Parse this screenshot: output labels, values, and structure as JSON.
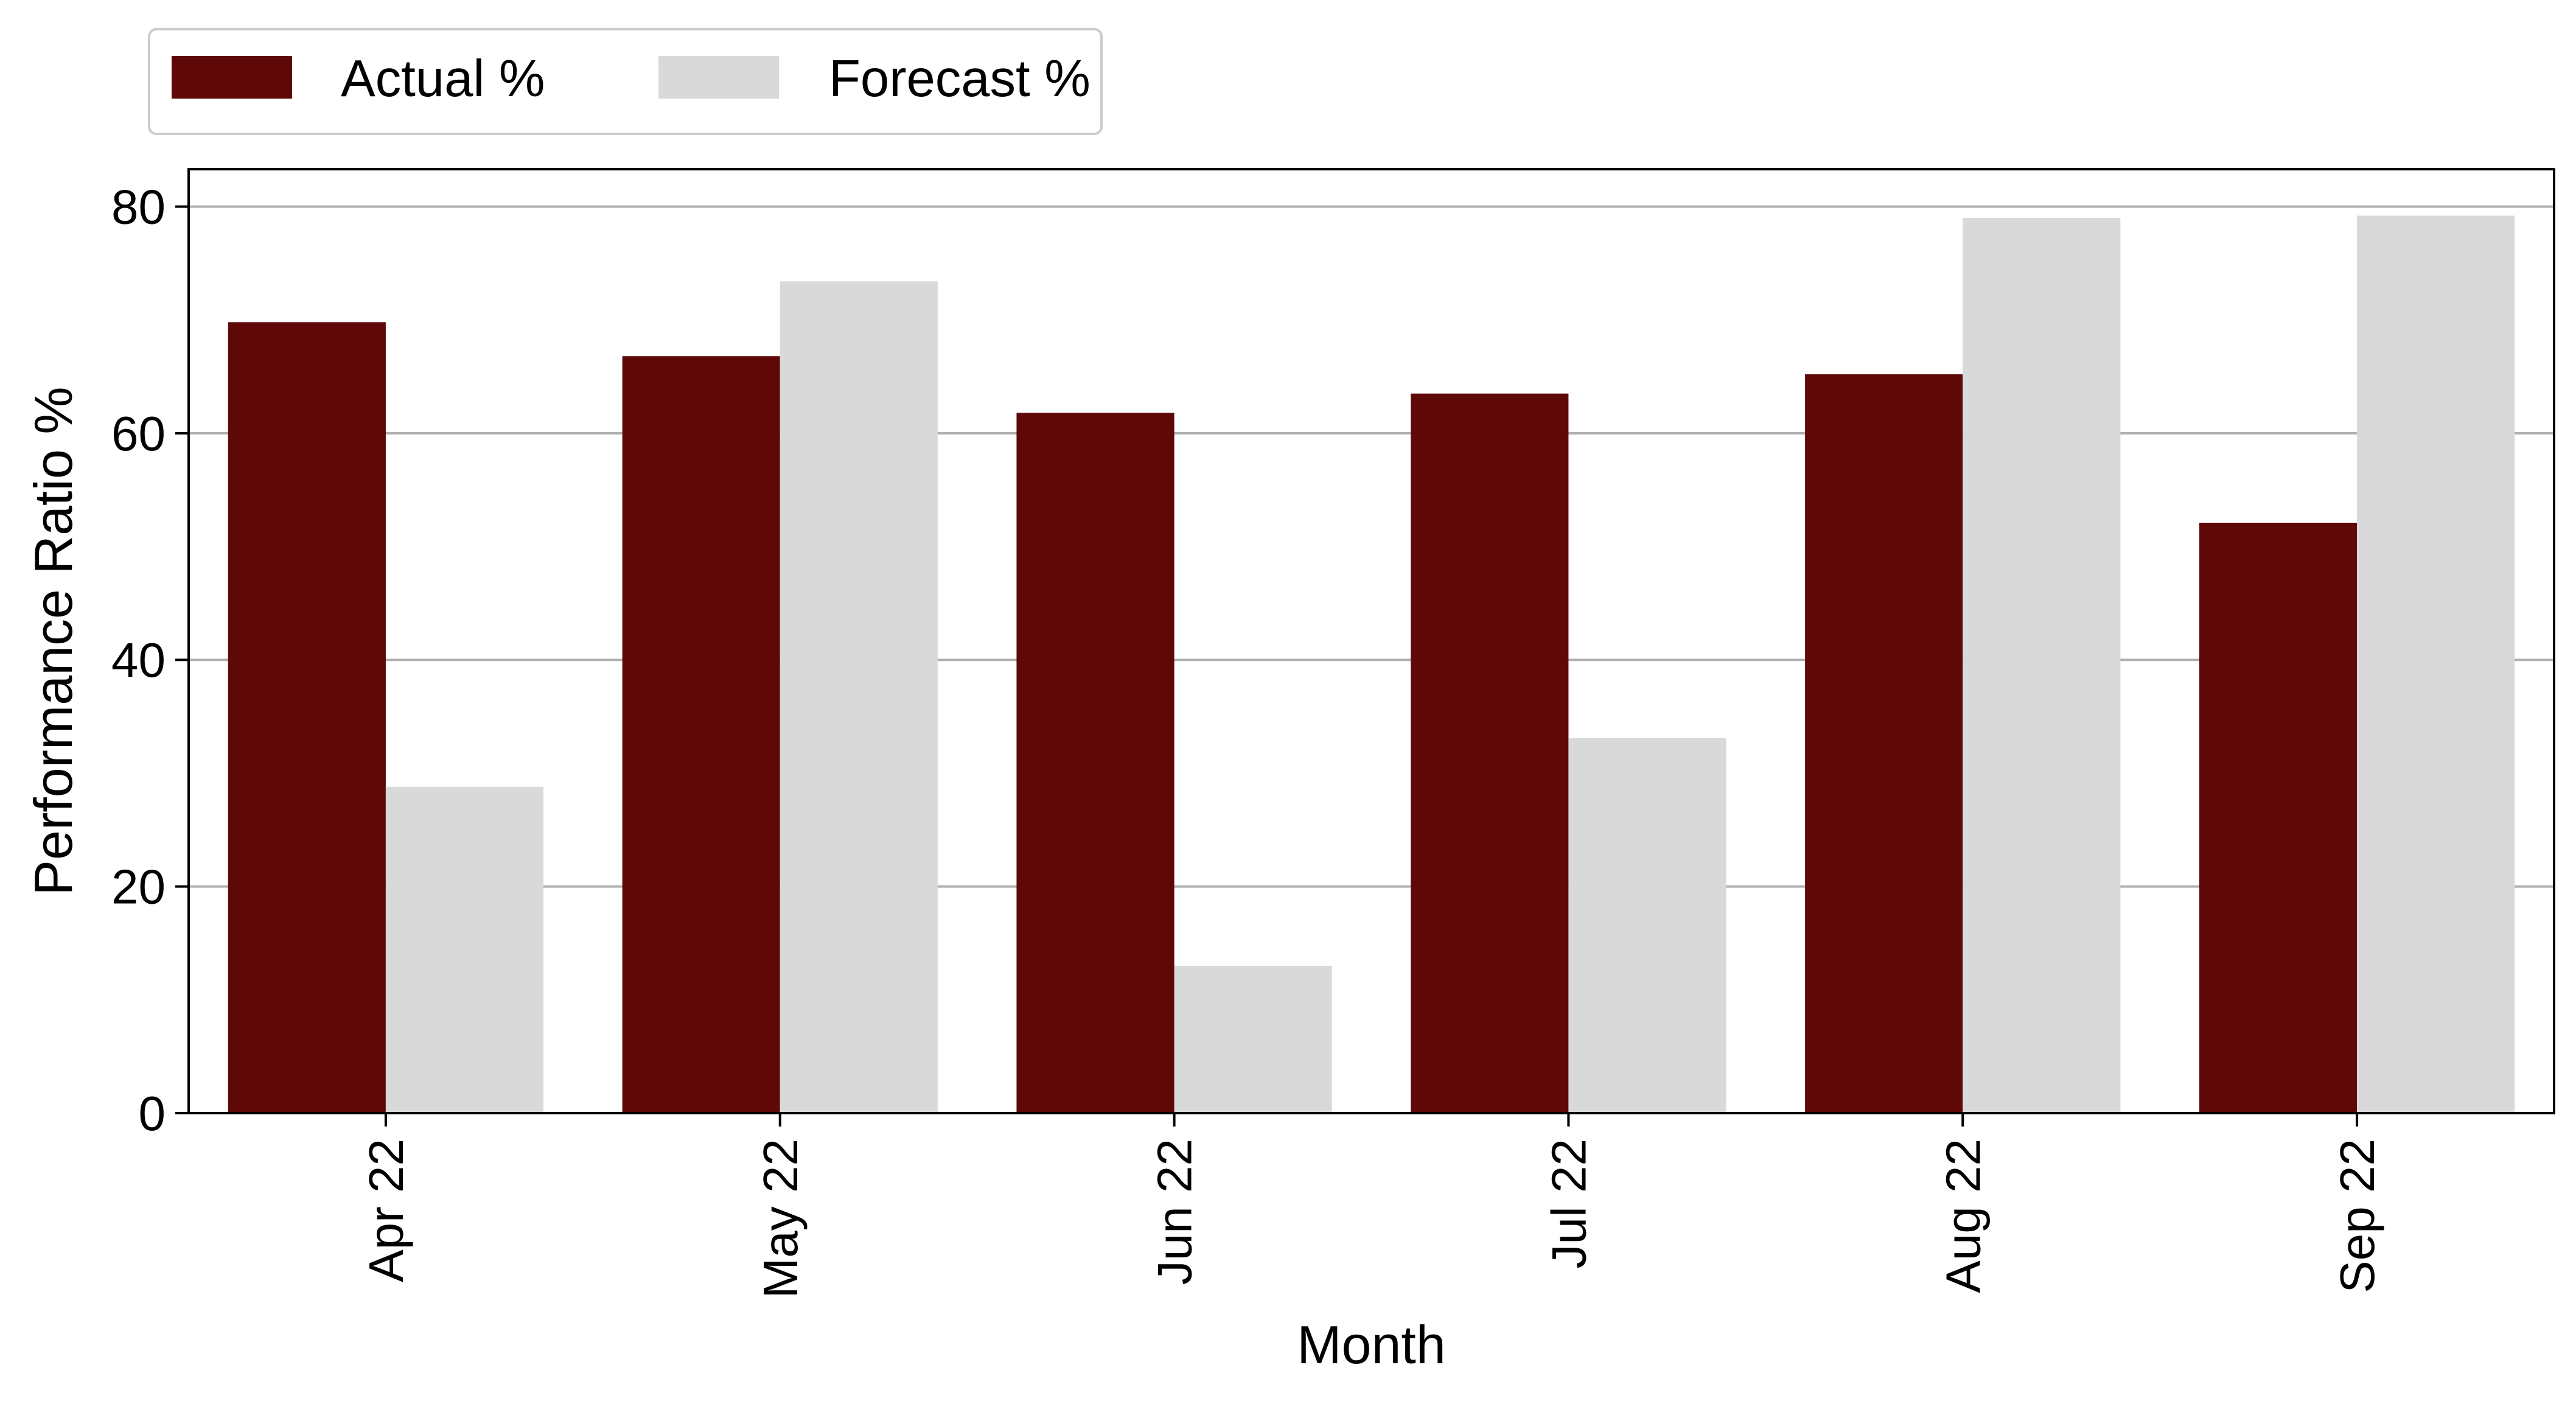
{
  "chart_data": {
    "type": "bar",
    "categories": [
      "Apr 22",
      "May 22",
      "Jun 22",
      "Jul 22",
      "Aug 22",
      "Sep 22"
    ],
    "series": [
      {
        "name": "Actual %",
        "values": [
          69.8,
          66.8,
          61.8,
          63.5,
          65.2,
          52.1
        ],
        "color": "#5e0808"
      },
      {
        "name": "Forecast %",
        "values": [
          28.8,
          73.4,
          13.0,
          33.1,
          79.0,
          79.2
        ],
        "color": "#d9d9d9"
      }
    ],
    "xlabel": "Month",
    "ylabel": "Performance Ratio %",
    "ylim": [
      0,
      83.3
    ],
    "yticks": [
      0,
      20,
      40,
      60,
      80
    ],
    "grid": "horizontal",
    "legend_position": "top-left, above plot"
  }
}
